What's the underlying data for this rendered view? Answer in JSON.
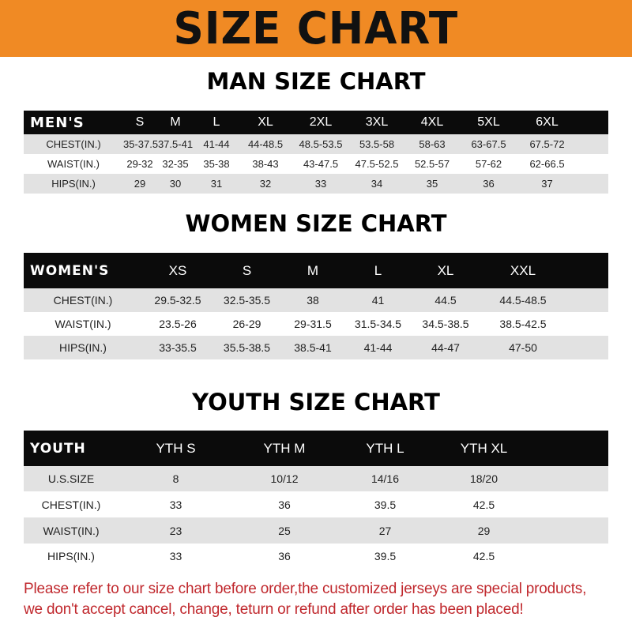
{
  "title": "SIZE CHART",
  "colors": {
    "banner": "#f08a24",
    "header_row": "#0b0b0b",
    "stripe": "#e2e2e2",
    "note": "#c0282d"
  },
  "men": {
    "title": "MAN SIZE CHART",
    "header": [
      "MEN'S",
      "S",
      "M",
      "L",
      "XL",
      "2XL",
      "3XL",
      "4XL",
      "5XL",
      "6XL"
    ],
    "rows": [
      [
        "CHEST(IN.)",
        "35-37.5",
        "37.5-41",
        "41-44",
        "44-48.5",
        "48.5-53.5",
        "53.5-58",
        "58-63",
        "63-67.5",
        "67.5-72"
      ],
      [
        "WAIST(IN.)",
        "29-32",
        "32-35",
        "35-38",
        "38-43",
        "43-47.5",
        "47.5-52.5",
        "52.5-57",
        "57-62",
        "62-66.5"
      ],
      [
        "HIPS(IN.)",
        "29",
        "30",
        "31",
        "32",
        "33",
        "34",
        "35",
        "36",
        "37"
      ]
    ]
  },
  "women": {
    "title": "WOMEN SIZE CHART",
    "header": [
      "WOMEN'S",
      "XS",
      "S",
      "M",
      "L",
      "XL",
      "XXL"
    ],
    "rows": [
      [
        "CHEST(IN.)",
        "29.5-32.5",
        "32.5-35.5",
        "38",
        "41",
        "44.5",
        "44.5-48.5"
      ],
      [
        "WAIST(IN.)",
        "23.5-26",
        "26-29",
        "29-31.5",
        "31.5-34.5",
        "34.5-38.5",
        "38.5-42.5"
      ],
      [
        "HIPS(IN.)",
        "33-35.5",
        "35.5-38.5",
        "38.5-41",
        "41-44",
        "44-47",
        "47-50"
      ]
    ]
  },
  "youth": {
    "title": "YOUTH SIZE CHART",
    "header": [
      "YOUTH",
      "YTH S",
      "YTH M",
      "YTH L",
      "YTH XL"
    ],
    "rows": [
      [
        "U.S.SIZE",
        "8",
        "10/12",
        "14/16",
        "18/20"
      ],
      [
        "CHEST(IN.)",
        "33",
        "36",
        "39.5",
        "42.5"
      ],
      [
        "WAIST(IN.)",
        "23",
        "25",
        "27",
        "29"
      ],
      [
        "HIPS(IN.)",
        "33",
        "36",
        "39.5",
        "42.5"
      ]
    ]
  },
  "note": [
    "Please refer to our size chart before order,the customized jerseys are special products,",
    "we don't accept cancel, change, teturn or refund after order has been placed!"
  ]
}
